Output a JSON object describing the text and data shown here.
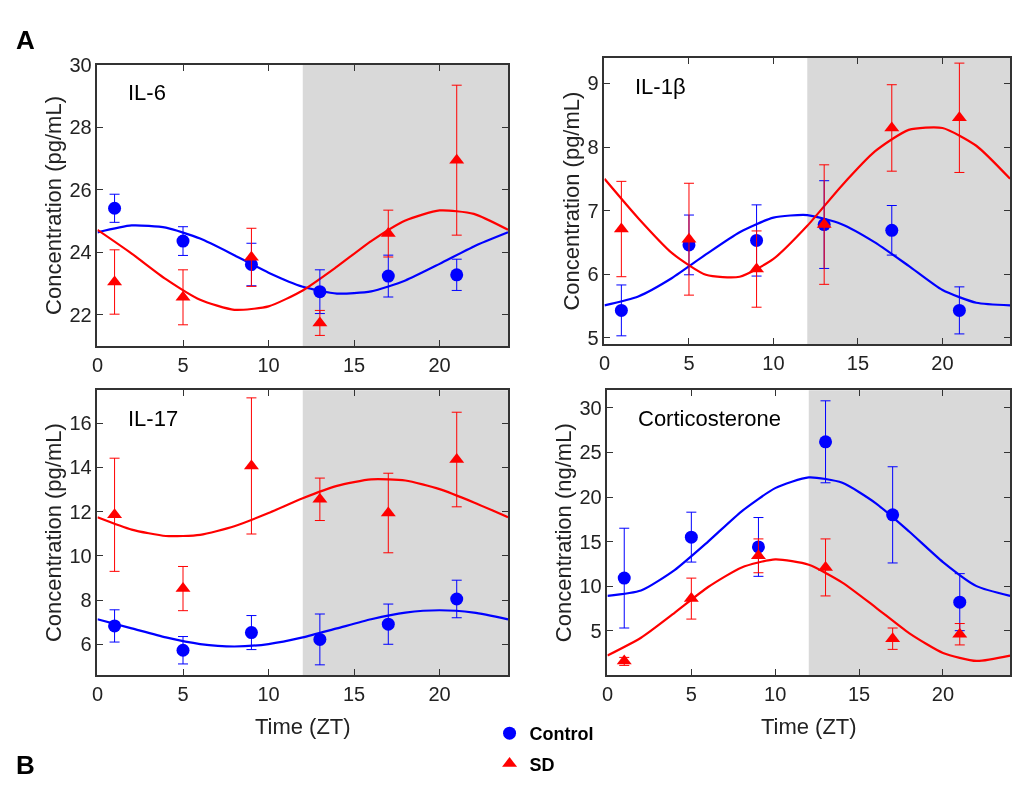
{
  "chart_data": [
    {
      "type": "scatter",
      "title": "IL-6",
      "legend": "bottom",
      "ylabel": "Concentration (pg/mL)",
      "annotations": [
        "A"
      ],
      "xlim": [
        0,
        24
      ],
      "xticks": [
        0,
        5,
        10,
        15,
        20
      ],
      "ylim": [
        21,
        30
      ],
      "yticks": [
        22,
        24,
        26,
        28,
        30
      ],
      "x": [
        1,
        5,
        9,
        13,
        17,
        21
      ],
      "bands": [
        {
          "axis": "x",
          "from": 12,
          "to": 24,
          "color": "#d9d9d9"
        }
      ],
      "series": [
        {
          "type": "line",
          "color": "#0000ff",
          "x": [
            0,
            2,
            4,
            6,
            8,
            10,
            12,
            14,
            16,
            18,
            20,
            22,
            24
          ],
          "values": [
            24.64,
            24.86,
            24.79,
            24.44,
            23.91,
            23.35,
            22.9,
            22.68,
            22.75,
            23.1,
            23.63,
            24.19,
            24.64
          ]
        },
        {
          "type": "line",
          "color": "#ff0000",
          "x": [
            0,
            2,
            4,
            6,
            8,
            10,
            12,
            14,
            16,
            18,
            20,
            22,
            24
          ],
          "values": [
            24.72,
            23.96,
            23.14,
            22.48,
            22.16,
            22.27,
            22.78,
            23.54,
            24.36,
            25.02,
            25.34,
            25.23,
            24.72
          ]
        },
        {
          "name": "Control",
          "color": "#0000ff",
          "marker": "circle",
          "values": [
            25.41,
            24.36,
            23.61,
            22.74,
            23.24,
            23.28
          ],
          "errors": [
            0.45,
            0.46,
            0.68,
            0.7,
            0.67,
            0.5
          ]
        },
        {
          "name": "SD",
          "color": "#ff0000",
          "marker": "triangle",
          "values": [
            23.05,
            22.56,
            23.84,
            21.74,
            24.6,
            26.95
          ],
          "errors": [
            1.03,
            0.88,
            0.93,
            0.4,
            0.75,
            2.4
          ]
        }
      ]
    },
    {
      "type": "scatter",
      "title": "IL-1β",
      "legend": "bottom",
      "ylabel": "Concentration (pg/mL)",
      "xlim": [
        0,
        24
      ],
      "xticks": [
        0,
        5,
        10,
        15,
        20
      ],
      "ylim": [
        4.9,
        9.4
      ],
      "yticks": [
        5,
        6,
        7,
        8,
        9
      ],
      "x": [
        1,
        5,
        9,
        13,
        17,
        21
      ],
      "bands": [
        {
          "axis": "x",
          "from": 12,
          "to": 24,
          "color": "#d9d9d9"
        }
      ],
      "series": [
        {
          "type": "line",
          "color": "#0000ff",
          "x": [
            0,
            2,
            4,
            6,
            8,
            10,
            12,
            14,
            16,
            18,
            20,
            22,
            24
          ],
          "values": [
            5.51,
            5.65,
            5.94,
            6.31,
            6.66,
            6.89,
            6.93,
            6.79,
            6.5,
            6.13,
            5.75,
            5.55,
            5.51
          ]
        },
        {
          "type": "line",
          "color": "#ff0000",
          "x": [
            0,
            2,
            4,
            6,
            8,
            10,
            12,
            14,
            16,
            18,
            20,
            22,
            24
          ],
          "values": [
            7.5,
            6.88,
            6.33,
            5.99,
            5.96,
            6.24,
            6.76,
            7.38,
            7.93,
            8.27,
            8.3,
            8.02,
            7.5
          ]
        },
        {
          "name": "Control",
          "color": "#0000ff",
          "marker": "circle",
          "values": [
            5.43,
            6.46,
            6.53,
            6.78,
            6.69,
            5.43
          ],
          "errors": [
            0.4,
            0.47,
            0.56,
            0.69,
            0.39,
            0.37
          ]
        },
        {
          "name": "SD",
          "color": "#ff0000",
          "marker": "triangle",
          "values": [
            6.71,
            6.55,
            6.08,
            6.78,
            8.3,
            8.46
          ],
          "errors": [
            0.75,
            0.88,
            0.6,
            0.94,
            0.68,
            0.86
          ]
        }
      ]
    },
    {
      "type": "scatter",
      "title": "IL-17",
      "legend": "bottom",
      "xlabel": "Time (ZT)",
      "ylabel": "Concentration (pg/mL)",
      "annotations": [
        "B"
      ],
      "xlim": [
        0,
        24
      ],
      "xticks": [
        0,
        5,
        10,
        15,
        20
      ],
      "ylim": [
        4.6,
        17.5
      ],
      "yticks": [
        6,
        8,
        10,
        12,
        14,
        16
      ],
      "x": [
        1,
        5,
        9,
        13,
        17,
        21
      ],
      "bands": [
        {
          "axis": "x",
          "from": 12,
          "to": 24,
          "color": "#d9d9d9"
        }
      ],
      "series": [
        {
          "type": "line",
          "color": "#0000ff",
          "x": [
            0,
            2,
            4,
            6,
            8,
            10,
            12,
            14,
            16,
            18,
            20,
            22,
            24
          ],
          "values": [
            7.13,
            6.72,
            6.31,
            6.01,
            5.9,
            6.01,
            6.31,
            6.72,
            7.13,
            7.43,
            7.54,
            7.43,
            7.13
          ]
        },
        {
          "type": "line",
          "color": "#ff0000",
          "x": [
            0,
            2,
            4,
            6,
            8,
            10,
            12,
            14,
            16,
            18,
            20,
            22,
            24
          ],
          "values": [
            11.75,
            11.19,
            10.9,
            10.95,
            11.34,
            11.94,
            12.61,
            13.17,
            13.46,
            13.41,
            13.02,
            12.42,
            11.75
          ]
        },
        {
          "name": "Control",
          "color": "#0000ff",
          "marker": "circle",
          "values": [
            6.83,
            5.73,
            6.53,
            6.22,
            6.91,
            8.05
          ],
          "errors": [
            0.73,
            0.62,
            0.77,
            1.15,
            0.91,
            0.85
          ]
        },
        {
          "name": "SD",
          "color": "#ff0000",
          "marker": "triangle",
          "values": [
            11.86,
            8.52,
            14.07,
            12.56,
            11.94,
            14.36
          ],
          "errors": [
            2.56,
            1.0,
            3.08,
            0.96,
            1.8,
            2.14
          ]
        }
      ]
    },
    {
      "type": "scatter",
      "title": "Corticosterone",
      "xlabel": "Time (ZT)",
      "ylabel": "Concentration (ng/mL)",
      "legend": "bottom left",
      "xlim": [
        0,
        24
      ],
      "xticks": [
        0,
        5,
        10,
        15,
        20
      ],
      "ylim": [
        0,
        32
      ],
      "yticks": [
        5,
        10,
        15,
        20,
        25,
        30
      ],
      "x": [
        1,
        5,
        9,
        13,
        17,
        21
      ],
      "bands": [
        {
          "axis": "x",
          "from": 12,
          "to": 24,
          "color": "#d9d9d9"
        }
      ],
      "series": [
        {
          "type": "line",
          "color": "#0000ff",
          "x": [
            0,
            2,
            4,
            6,
            8,
            10,
            12,
            14,
            16,
            18,
            20,
            22,
            24
          ],
          "values": [
            8.9,
            9.5,
            11.8,
            15.0,
            18.4,
            21.0,
            22.2,
            21.6,
            19.3,
            16.1,
            12.7,
            10.0,
            8.9
          ]
        },
        {
          "type": "line",
          "color": "#ff0000",
          "x": [
            0,
            2,
            4,
            6,
            8,
            10,
            12,
            14,
            16,
            18,
            20,
            22,
            24
          ],
          "values": [
            2.2,
            4.2,
            7.0,
            9.9,
            12.1,
            13.0,
            12.4,
            10.4,
            7.6,
            4.7,
            2.5,
            1.6,
            2.2
          ]
        },
        {
          "name": "Control",
          "color": "#0000ff",
          "marker": "circle",
          "values": [
            10.9,
            15.5,
            14.4,
            26.2,
            18.0,
            8.2
          ],
          "errors": [
            5.6,
            2.8,
            3.3,
            4.6,
            5.4,
            3.2
          ]
        },
        {
          "name": "SD",
          "color": "#ff0000",
          "marker": "triangle",
          "values": [
            1.6,
            8.6,
            13.4,
            12.1,
            4.1,
            4.6
          ],
          "errors": [
            [
              1.1,
              2.0
            ],
            2.3,
            1.9,
            3.2,
            1.2,
            1.2
          ]
        }
      ]
    }
  ]
}
